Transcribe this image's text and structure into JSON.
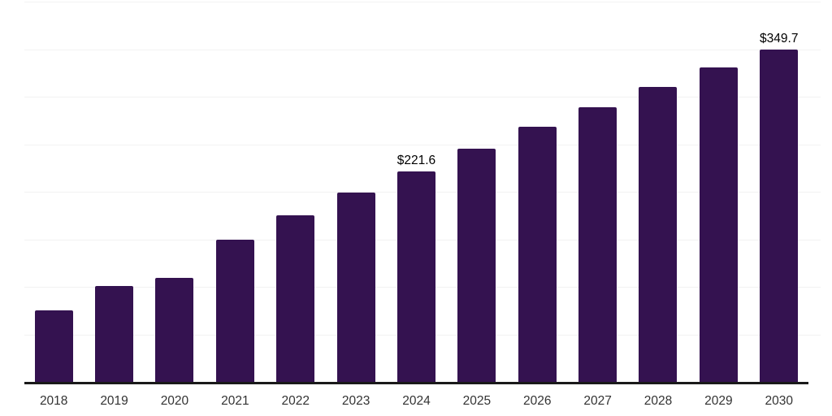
{
  "chart_data": {
    "type": "bar",
    "title": "",
    "xlabel": "",
    "ylabel": "",
    "categories": [
      "2018",
      "2019",
      "2020",
      "2021",
      "2022",
      "2023",
      "2024",
      "2025",
      "2026",
      "2027",
      "2028",
      "2029",
      "2030"
    ],
    "values": [
      75,
      101,
      109,
      150,
      175,
      199,
      221.6,
      245,
      268,
      289,
      310,
      331,
      349.7
    ],
    "bar_labels": [
      "",
      "",
      "",
      "",
      "",
      "",
      "$221.6",
      "",
      "",
      "",
      "",
      "",
      "$349.7"
    ],
    "ylim": [
      0,
      400
    ],
    "gridline_interval": 50,
    "grid": "horizontal",
    "legend": "none",
    "colors": {
      "bar": "#341250",
      "axis_line": "#1a1a1a",
      "gridline": "#f2f2f2",
      "value_label": "#000000",
      "tick_label": "#333333",
      "background": "#ffffff"
    }
  }
}
